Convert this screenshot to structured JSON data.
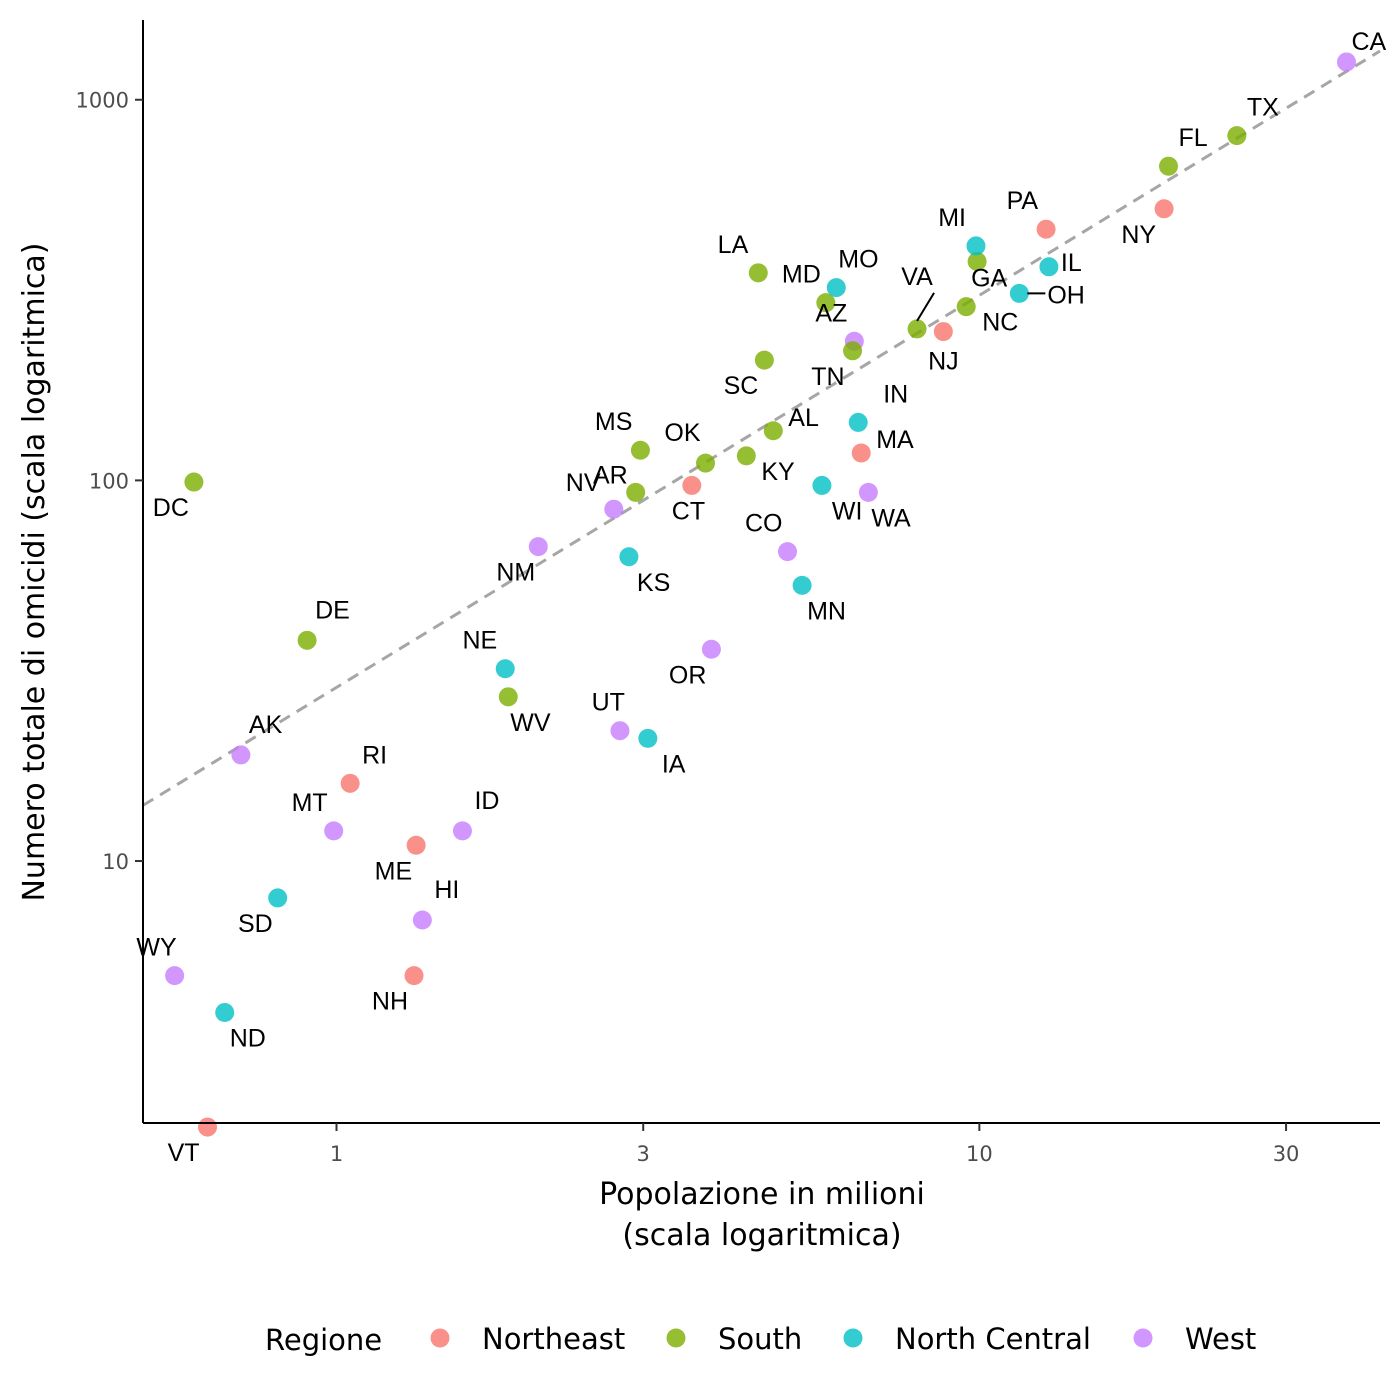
{
  "chart_data": {
    "type": "scatter",
    "xlabel_lines": [
      "Popolazione in milioni",
      "(scala logaritmica)"
    ],
    "ylabel": "Numero totale di omicidi (scala logaritmica)",
    "x_scale": "log",
    "y_scale": "log",
    "xlim": [
      0.5,
      42
    ],
    "ylim": [
      2.05,
      1620
    ],
    "x_ticks": [
      1,
      3,
      10,
      30
    ],
    "y_ticks": [
      10,
      100,
      1000
    ],
    "grid": false,
    "legend": {
      "title": "Regione",
      "placement": "bottom",
      "entries": [
        {
          "name": "Northeast",
          "color": "#F8766D"
        },
        {
          "name": "South",
          "color": "#7CAE00"
        },
        {
          "name": "North Central",
          "color": "#00BFC4"
        },
        {
          "name": "West",
          "color": "#C77CFF"
        }
      ]
    },
    "reference_line": {
      "style": "dashed",
      "color": "#a6a6a6",
      "x": [
        0.5,
        42
      ],
      "y": [
        14.0,
        1343
      ]
    },
    "points": [
      {
        "label": "AL",
        "region": "South",
        "x": 4.78,
        "y": 135
      },
      {
        "label": "AK",
        "region": "West",
        "x": 0.71,
        "y": 19
      },
      {
        "label": "AZ",
        "region": "West",
        "x": 6.39,
        "y": 232
      },
      {
        "label": "AR",
        "region": "South",
        "x": 2.92,
        "y": 93
      },
      {
        "label": "CA",
        "region": "West",
        "x": 37.25,
        "y": 1257
      },
      {
        "label": "CO",
        "region": "West",
        "x": 5.03,
        "y": 65
      },
      {
        "label": "CT",
        "region": "Northeast",
        "x": 3.57,
        "y": 97
      },
      {
        "label": "DE",
        "region": "South",
        "x": 0.9,
        "y": 38
      },
      {
        "label": "DC",
        "region": "South",
        "x": 0.6,
        "y": 99
      },
      {
        "label": "FL",
        "region": "South",
        "x": 19.69,
        "y": 669
      },
      {
        "label": "GA",
        "region": "South",
        "x": 9.92,
        "y": 376
      },
      {
        "label": "HI",
        "region": "West",
        "x": 1.36,
        "y": 7
      },
      {
        "label": "ID",
        "region": "West",
        "x": 1.57,
        "y": 12
      },
      {
        "label": "IL",
        "region": "North Central",
        "x": 12.83,
        "y": 364
      },
      {
        "label": "IN",
        "region": "North Central",
        "x": 6.48,
        "y": 142
      },
      {
        "label": "IA",
        "region": "North Central",
        "x": 3.05,
        "y": 21
      },
      {
        "label": "KS",
        "region": "North Central",
        "x": 2.85,
        "y": 63
      },
      {
        "label": "KY",
        "region": "South",
        "x": 4.34,
        "y": 116
      },
      {
        "label": "LA",
        "region": "South",
        "x": 4.53,
        "y": 351
      },
      {
        "label": "ME",
        "region": "Northeast",
        "x": 1.33,
        "y": 11
      },
      {
        "label": "MD",
        "region": "South",
        "x": 5.77,
        "y": 293
      },
      {
        "label": "MA",
        "region": "Northeast",
        "x": 6.55,
        "y": 118
      },
      {
        "label": "MI",
        "region": "North Central",
        "x": 9.88,
        "y": 413
      },
      {
        "label": "MN",
        "region": "North Central",
        "x": 5.3,
        "y": 53
      },
      {
        "label": "MS",
        "region": "South",
        "x": 2.97,
        "y": 120
      },
      {
        "label": "MO",
        "region": "North Central",
        "x": 5.99,
        "y": 321
      },
      {
        "label": "MT",
        "region": "West",
        "x": 0.99,
        "y": 12
      },
      {
        "label": "NE",
        "region": "North Central",
        "x": 1.83,
        "y": 32
      },
      {
        "label": "NV",
        "region": "West",
        "x": 2.7,
        "y": 84
      },
      {
        "label": "NH",
        "region": "Northeast",
        "x": 1.32,
        "y": 5
      },
      {
        "label": "NJ",
        "region": "Northeast",
        "x": 8.79,
        "y": 246
      },
      {
        "label": "NM",
        "region": "West",
        "x": 2.06,
        "y": 67
      },
      {
        "label": "NY",
        "region": "Northeast",
        "x": 19.38,
        "y": 517
      },
      {
        "label": "NC",
        "region": "South",
        "x": 9.54,
        "y": 286
      },
      {
        "label": "ND",
        "region": "North Central",
        "x": 0.67,
        "y": 4
      },
      {
        "label": "OH",
        "region": "North Central",
        "x": 11.54,
        "y": 310
      },
      {
        "label": "OK",
        "region": "South",
        "x": 3.75,
        "y": 111
      },
      {
        "label": "OR",
        "region": "West",
        "x": 3.83,
        "y": 36
      },
      {
        "label": "PA",
        "region": "Northeast",
        "x": 12.7,
        "y": 457
      },
      {
        "label": "RI",
        "region": "Northeast",
        "x": 1.05,
        "y": 16
      },
      {
        "label": "SC",
        "region": "South",
        "x": 4.63,
        "y": 207
      },
      {
        "label": "SD",
        "region": "North Central",
        "x": 0.81,
        "y": 8
      },
      {
        "label": "TN",
        "region": "South",
        "x": 6.35,
        "y": 219
      },
      {
        "label": "TX",
        "region": "South",
        "x": 25.15,
        "y": 805
      },
      {
        "label": "UT",
        "region": "West",
        "x": 2.76,
        "y": 22
      },
      {
        "label": "VT",
        "region": "Northeast",
        "x": 0.63,
        "y": 2
      },
      {
        "label": "VA",
        "region": "South",
        "x": 8.0,
        "y": 250
      },
      {
        "label": "WA",
        "region": "West",
        "x": 6.72,
        "y": 93
      },
      {
        "label": "WV",
        "region": "South",
        "x": 1.85,
        "y": 27
      },
      {
        "label": "WI",
        "region": "North Central",
        "x": 5.69,
        "y": 97
      },
      {
        "label": "WY",
        "region": "West",
        "x": 0.56,
        "y": 5
      }
    ]
  }
}
